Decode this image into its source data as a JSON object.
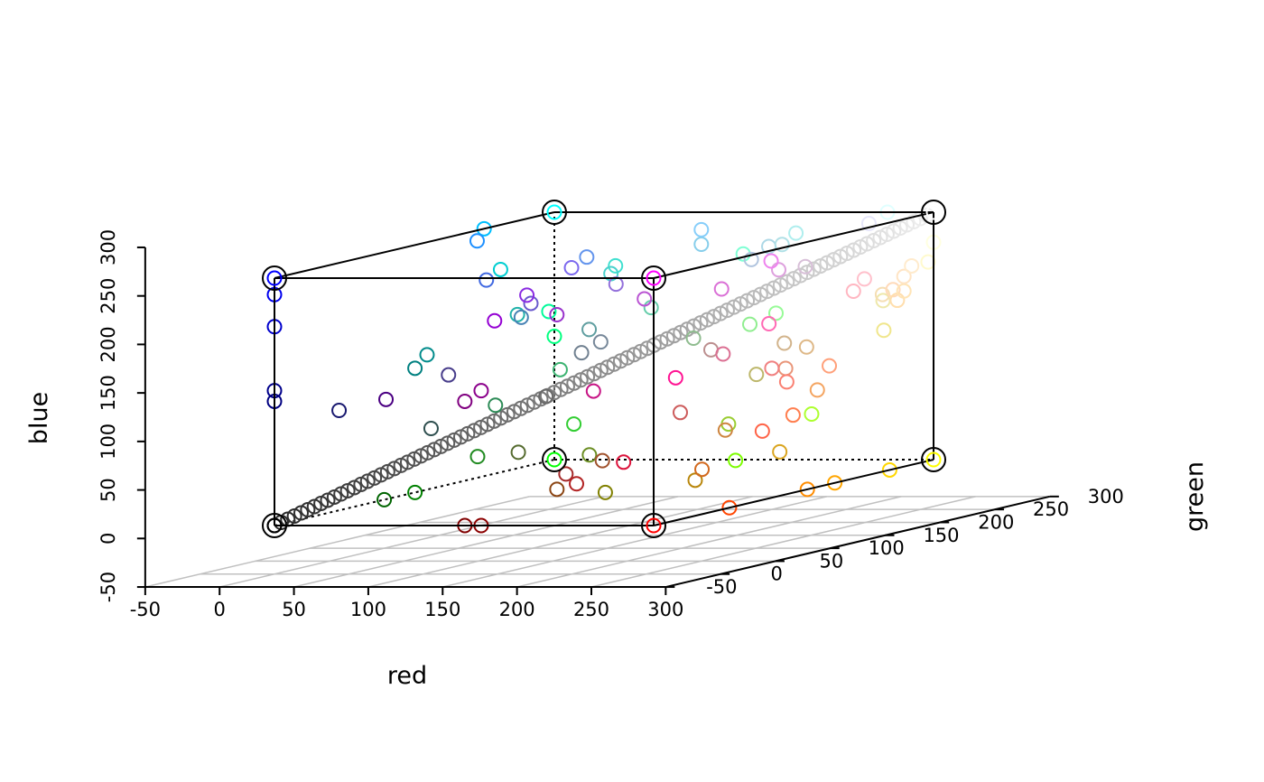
{
  "chart_data": {
    "type": "scatter3d",
    "title": "",
    "x_axis": {
      "label": "red",
      "range": [
        -50,
        300
      ],
      "ticks": [
        -50,
        0,
        50,
        100,
        150,
        200,
        250,
        300
      ]
    },
    "y_axis": {
      "label": "green",
      "range": [
        -50,
        300
      ],
      "ticks": [
        -50,
        0,
        50,
        100,
        150,
        200,
        250,
        300
      ]
    },
    "z_axis": {
      "label": "blue",
      "range": [
        -50,
        300
      ],
      "ticks": [
        -50,
        0,
        50,
        100,
        150,
        200,
        250,
        300
      ]
    },
    "grid_plane": "red-green floor",
    "cube_corners": [
      {
        "x": 0,
        "y": 0,
        "z": 0,
        "color": "#000000"
      },
      {
        "x": 255,
        "y": 0,
        "z": 0,
        "color": "#FF0000"
      },
      {
        "x": 0,
        "y": 0,
        "z": 255,
        "color": "#0000FF"
      },
      {
        "x": 255,
        "y": 0,
        "z": 255,
        "color": "#FF00FF"
      },
      {
        "x": 0,
        "y": 255,
        "z": 0,
        "color": "#00FF00"
      },
      {
        "x": 255,
        "y": 255,
        "z": 0,
        "color": "#FFFF00"
      },
      {
        "x": 0,
        "y": 255,
        "z": 255,
        "color": "#00FFFF"
      },
      {
        "x": 255,
        "y": 255,
        "z": 255,
        "color": "#FFFFFF"
      }
    ],
    "gray_diagonal": {
      "from": 0,
      "to": 255,
      "count": 100,
      "note": "gray levels along r=g=b"
    },
    "points": [
      {
        "x": 0,
        "y": 0,
        "z": 205,
        "color": "#0000CD"
      },
      {
        "x": 0,
        "y": 0,
        "z": 139,
        "color": "#00008B"
      },
      {
        "x": 0,
        "y": 0,
        "z": 128,
        "color": "#000080"
      },
      {
        "x": 0,
        "y": 0,
        "z": 238,
        "color": "#0000EE"
      },
      {
        "x": 25,
        "y": 25,
        "z": 112,
        "color": "#191970"
      },
      {
        "x": 0,
        "y": 100,
        "z": 0,
        "color": "#006400"
      },
      {
        "x": 0,
        "y": 128,
        "z": 0,
        "color": "#008000"
      },
      {
        "x": 0,
        "y": 128,
        "z": 128,
        "color": "#008080"
      },
      {
        "x": 0,
        "y": 139,
        "z": 139,
        "color": "#008B8B"
      },
      {
        "x": 0,
        "y": 191,
        "z": 255,
        "color": "#00BFFF"
      },
      {
        "x": 0,
        "y": 206,
        "z": 209,
        "color": "#00CED1"
      },
      {
        "x": 0,
        "y": 250,
        "z": 154,
        "color": "#00FA9A"
      },
      {
        "x": 0,
        "y": 255,
        "z": 127,
        "color": "#00FF7F"
      },
      {
        "x": 30,
        "y": 144,
        "z": 255,
        "color": "#1E90FF"
      },
      {
        "x": 32,
        "y": 178,
        "z": 170,
        "color": "#20B2AA"
      },
      {
        "x": 34,
        "y": 139,
        "z": 34,
        "color": "#228B22"
      },
      {
        "x": 46,
        "y": 139,
        "z": 87,
        "color": "#2E8B57"
      },
      {
        "x": 47,
        "y": 79,
        "z": 79,
        "color": "#2F4F4F"
      },
      {
        "x": 50,
        "y": 205,
        "z": 50,
        "color": "#32CD32"
      },
      {
        "x": 60,
        "y": 179,
        "z": 113,
        "color": "#3CB371"
      },
      {
        "x": 64,
        "y": 224,
        "z": 208,
        "color": "#40E0D0"
      },
      {
        "x": 65,
        "y": 105,
        "z": 225,
        "color": "#4169E1"
      },
      {
        "x": 70,
        "y": 130,
        "z": 180,
        "color": "#4682B4"
      },
      {
        "x": 72,
        "y": 61,
        "z": 139,
        "color": "#483D8B"
      },
      {
        "x": 72,
        "y": 209,
        "z": 204,
        "color": "#48D1CC"
      },
      {
        "x": 75,
        "y": 0,
        "z": 130,
        "color": "#4B0082"
      },
      {
        "x": 85,
        "y": 107,
        "z": 47,
        "color": "#556B2F"
      },
      {
        "x": 95,
        "y": 158,
        "z": 160,
        "color": "#5F9EA0"
      },
      {
        "x": 100,
        "y": 149,
        "z": 237,
        "color": "#6495ED"
      },
      {
        "x": 102,
        "y": 205,
        "z": 170,
        "color": "#66CDAA"
      },
      {
        "x": 105,
        "y": 105,
        "z": 105,
        "color": "#696969"
      },
      {
        "x": 106,
        "y": 90,
        "z": 205,
        "color": "#6A5ACD"
      },
      {
        "x": 107,
        "y": 142,
        "z": 35,
        "color": "#6B8E23"
      },
      {
        "x": 112,
        "y": 128,
        "z": 144,
        "color": "#708090"
      },
      {
        "x": 119,
        "y": 136,
        "z": 153,
        "color": "#778899"
      },
      {
        "x": 123,
        "y": 104,
        "z": 238,
        "color": "#7B68EE"
      },
      {
        "x": 124,
        "y": 252,
        "z": 0,
        "color": "#7CFC00"
      },
      {
        "x": 127,
        "y": 255,
        "z": 212,
        "color": "#7FFFD4"
      },
      {
        "x": 128,
        "y": 0,
        "z": 0,
        "color": "#800000"
      },
      {
        "x": 128,
        "y": 0,
        "z": 128,
        "color": "#800080"
      },
      {
        "x": 128,
        "y": 128,
        "z": 0,
        "color": "#808000"
      },
      {
        "x": 135,
        "y": 206,
        "z": 235,
        "color": "#87CEEB"
      },
      {
        "x": 135,
        "y": 206,
        "z": 250,
        "color": "#87CEFA"
      },
      {
        "x": 138,
        "y": 43,
        "z": 226,
        "color": "#8A2BE2"
      },
      {
        "x": 139,
        "y": 0,
        "z": 0,
        "color": "#8B0000"
      },
      {
        "x": 139,
        "y": 0,
        "z": 139,
        "color": "#8B008B"
      },
      {
        "x": 139,
        "y": 69,
        "z": 19,
        "color": "#8B4513"
      },
      {
        "x": 143,
        "y": 188,
        "z": 143,
        "color": "#8FBC8F"
      },
      {
        "x": 144,
        "y": 238,
        "z": 144,
        "color": "#90EE90"
      },
      {
        "x": 147,
        "y": 112,
        "z": 219,
        "color": "#9370DB"
      },
      {
        "x": 148,
        "y": 0,
        "z": 211,
        "color": "#9400D3"
      },
      {
        "x": 152,
        "y": 251,
        "z": 152,
        "color": "#98FB98"
      },
      {
        "x": 153,
        "y": 50,
        "z": 204,
        "color": "#9932CC"
      },
      {
        "x": 154,
        "y": 205,
        "z": 50,
        "color": "#9ACD32"
      },
      {
        "x": 160,
        "y": 82,
        "z": 45,
        "color": "#A0522D"
      },
      {
        "x": 165,
        "y": 42,
        "z": 42,
        "color": "#A52A2A"
      },
      {
        "x": 173,
        "y": 216,
        "z": 230,
        "color": "#ADD8E6"
      },
      {
        "x": 173,
        "y": 255,
        "z": 47,
        "color": "#ADFF2F"
      },
      {
        "x": 175,
        "y": 238,
        "z": 238,
        "color": "#AFEEEE"
      },
      {
        "x": 176,
        "y": 196,
        "z": 222,
        "color": "#B0C4DE"
      },
      {
        "x": 176,
        "y": 224,
        "z": 230,
        "color": "#B0E0E6"
      },
      {
        "x": 178,
        "y": 34,
        "z": 34,
        "color": "#B22222"
      },
      {
        "x": 184,
        "y": 134,
        "z": 11,
        "color": "#B8860B"
      },
      {
        "x": 186,
        "y": 85,
        "z": 211,
        "color": "#BA55D3"
      },
      {
        "x": 188,
        "y": 143,
        "z": 143,
        "color": "#BC8F8F"
      },
      {
        "x": 189,
        "y": 183,
        "z": 107,
        "color": "#BDB76B"
      },
      {
        "x": 199,
        "y": 21,
        "z": 133,
        "color": "#C71585"
      },
      {
        "x": 205,
        "y": 92,
        "z": 92,
        "color": "#CD5C5C"
      },
      {
        "x": 205,
        "y": 133,
        "z": 63,
        "color": "#CD853F"
      },
      {
        "x": 210,
        "y": 105,
        "z": 30,
        "color": "#D2691E"
      },
      {
        "x": 210,
        "y": 180,
        "z": 140,
        "color": "#D2B48C"
      },
      {
        "x": 216,
        "y": 191,
        "z": 216,
        "color": "#D8BFD8"
      },
      {
        "x": 218,
        "y": 112,
        "z": 214,
        "color": "#DA70D6"
      },
      {
        "x": 218,
        "y": 165,
        "z": 32,
        "color": "#DAA520"
      },
      {
        "x": 219,
        "y": 112,
        "z": 147,
        "color": "#DB7093"
      },
      {
        "x": 220,
        "y": 20,
        "z": 60,
        "color": "#DC143C"
      },
      {
        "x": 221,
        "y": 160,
        "z": 221,
        "color": "#DDA0DD"
      },
      {
        "x": 222,
        "y": 184,
        "z": 135,
        "color": "#DEB887"
      },
      {
        "x": 224,
        "y": 255,
        "z": 255,
        "color": "#E0FFFF"
      },
      {
        "x": 230,
        "y": 230,
        "z": 250,
        "color": "#E6E6FA"
      },
      {
        "x": 233,
        "y": 150,
        "z": 122,
        "color": "#E9967A"
      },
      {
        "x": 238,
        "y": 130,
        "z": 238,
        "color": "#EE82EE"
      },
      {
        "x": 238,
        "y": 232,
        "z": 170,
        "color": "#EEE8AA"
      },
      {
        "x": 240,
        "y": 128,
        "z": 128,
        "color": "#F08080"
      },
      {
        "x": 240,
        "y": 230,
        "z": 140,
        "color": "#F0E68C"
      },
      {
        "x": 244,
        "y": 164,
        "z": 96,
        "color": "#F4A460"
      },
      {
        "x": 245,
        "y": 222,
        "z": 179,
        "color": "#F5DEB3"
      },
      {
        "x": 250,
        "y": 128,
        "z": 114,
        "color": "#FA8072"
      },
      {
        "x": 255,
        "y": 20,
        "z": 147,
        "color": "#FF1493"
      },
      {
        "x": 255,
        "y": 69,
        "z": 0,
        "color": "#FF4500"
      },
      {
        "x": 255,
        "y": 99,
        "z": 71,
        "color": "#FF6347"
      },
      {
        "x": 255,
        "y": 105,
        "z": 180,
        "color": "#FF69B4"
      },
      {
        "x": 255,
        "y": 127,
        "z": 80,
        "color": "#FF7F50"
      },
      {
        "x": 255,
        "y": 140,
        "z": 0,
        "color": "#FF8C00"
      },
      {
        "x": 255,
        "y": 160,
        "z": 122,
        "color": "#FFA07A"
      },
      {
        "x": 255,
        "y": 165,
        "z": 0,
        "color": "#FFA500"
      },
      {
        "x": 255,
        "y": 182,
        "z": 193,
        "color": "#FFB6C1"
      },
      {
        "x": 255,
        "y": 192,
        "z": 203,
        "color": "#FFC0CB"
      },
      {
        "x": 255,
        "y": 215,
        "z": 0,
        "color": "#FFD700"
      },
      {
        "x": 255,
        "y": 218,
        "z": 185,
        "color": "#FFDAB9"
      },
      {
        "x": 255,
        "y": 222,
        "z": 173,
        "color": "#FFDEAD"
      },
      {
        "x": 255,
        "y": 228,
        "z": 181,
        "color": "#FFE4B5"
      },
      {
        "x": 255,
        "y": 228,
        "z": 196,
        "color": "#FFE4C4"
      },
      {
        "x": 255,
        "y": 235,
        "z": 205,
        "color": "#FFEBCD"
      },
      {
        "x": 255,
        "y": 250,
        "z": 205,
        "color": "#FFFACD"
      },
      {
        "x": 255,
        "y": 255,
        "z": 224,
        "color": "#FFFFE0"
      },
      {
        "x": 0,
        "y": 0,
        "z": 0,
        "color": "#2a2a2a"
      }
    ]
  }
}
